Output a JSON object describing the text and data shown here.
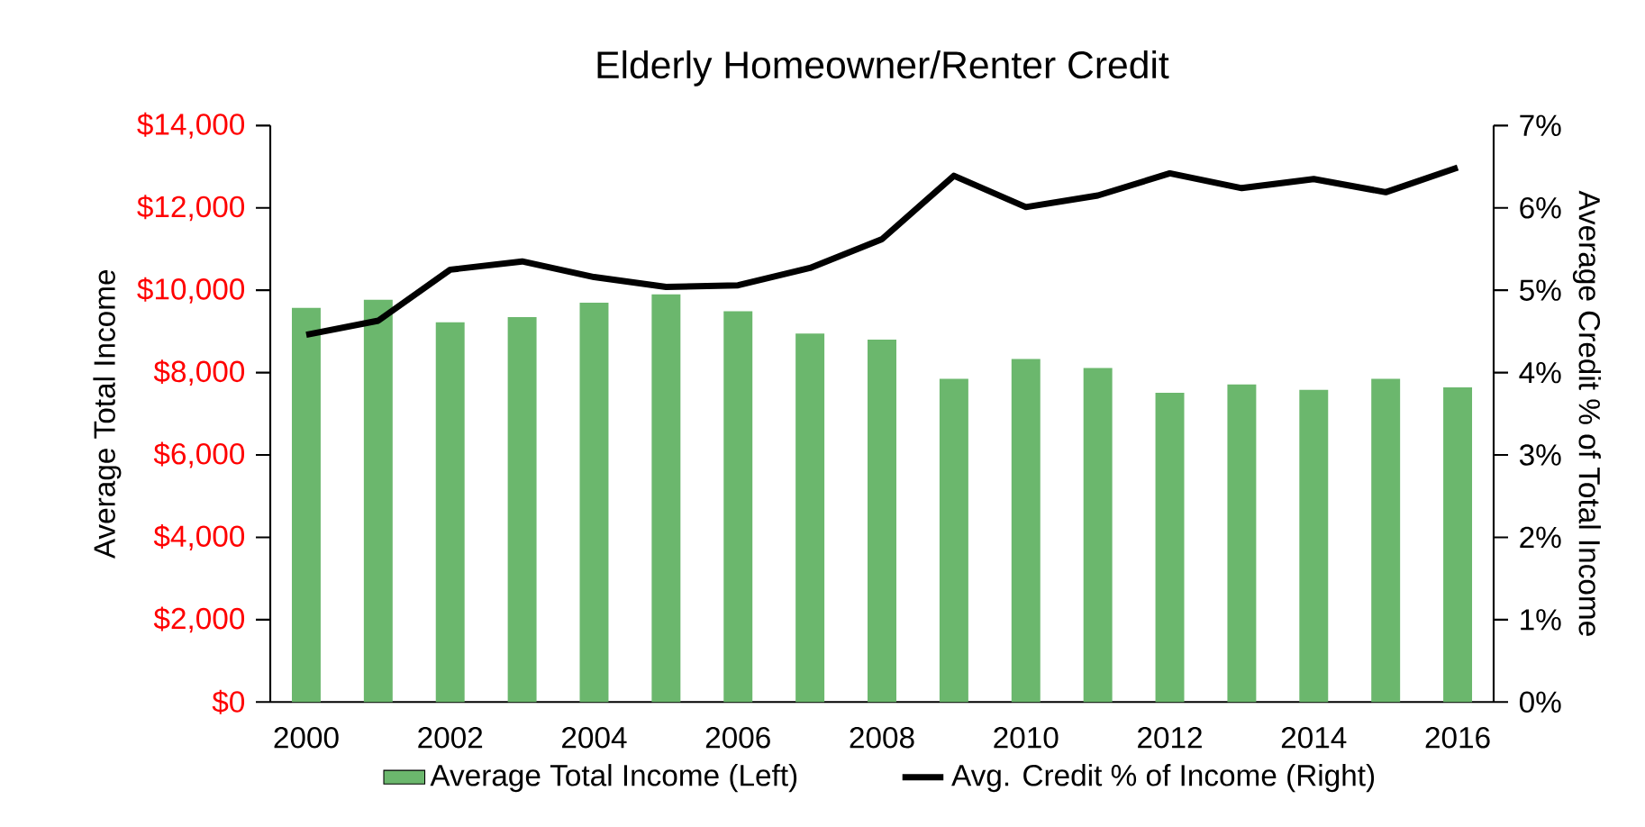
{
  "chart_data": {
    "type": "bar",
    "title": "Elderly Homeowner/Renter  Credit",
    "ylabel": "Average  Total Income",
    "y2label": "Average  Credit  % of Total Income",
    "categories": [
      "2000",
      null,
      "2002",
      null,
      "2004",
      null,
      "2006",
      null,
      "2008",
      null,
      "2010",
      null,
      "2012",
      null,
      "2014",
      null,
      "2016"
    ],
    "series": [
      {
        "name": "Average Total Income (Left)",
        "color": "#6bb76d",
        "values": [
          9570,
          9770,
          9220,
          9350,
          9700,
          9900,
          9490,
          8950,
          8800,
          7850,
          8330,
          8110,
          7510,
          7710,
          7580,
          7850,
          7640
        ]
      },
      {
        "name": "Avg. Credit % of Income (Right)",
        "type": "line",
        "axis": "y2",
        "color": "#000000",
        "values": [
          4.46,
          4.63,
          5.25,
          5.35,
          5.16,
          5.04,
          5.06,
          5.27,
          5.62,
          6.39,
          6.01,
          6.15,
          6.42,
          6.24,
          6.35,
          6.19,
          6.49
        ]
      }
    ],
    "ylim": [
      0,
      14000
    ],
    "yticks": [
      {
        "value": 0,
        "label": "$0"
      },
      {
        "value": 2000,
        "label": "$2,000"
      },
      {
        "value": 4000,
        "label": "$4,000"
      },
      {
        "value": 6000,
        "label": "$6,000"
      },
      {
        "value": 8000,
        "label": "$8,000"
      },
      {
        "value": 10000,
        "label": "$10,000"
      },
      {
        "value": 12000,
        "label": "$12,000"
      },
      {
        "value": 14000,
        "label": "$14,000"
      }
    ],
    "y2lim": [
      0,
      7
    ],
    "y2ticks": [
      {
        "value": 0,
        "label": "0%"
      },
      {
        "value": 1,
        "label": "1%"
      },
      {
        "value": 2,
        "label": "2%"
      },
      {
        "value": 3,
        "label": "3%"
      },
      {
        "value": 4,
        "label": "4%"
      },
      {
        "value": 5,
        "label": "5%"
      },
      {
        "value": 6,
        "label": "6%"
      },
      {
        "value": 7,
        "label": "7%"
      }
    ],
    "legend": "bottom",
    "grid": false,
    "marker": "none",
    "line_style": "solid"
  }
}
